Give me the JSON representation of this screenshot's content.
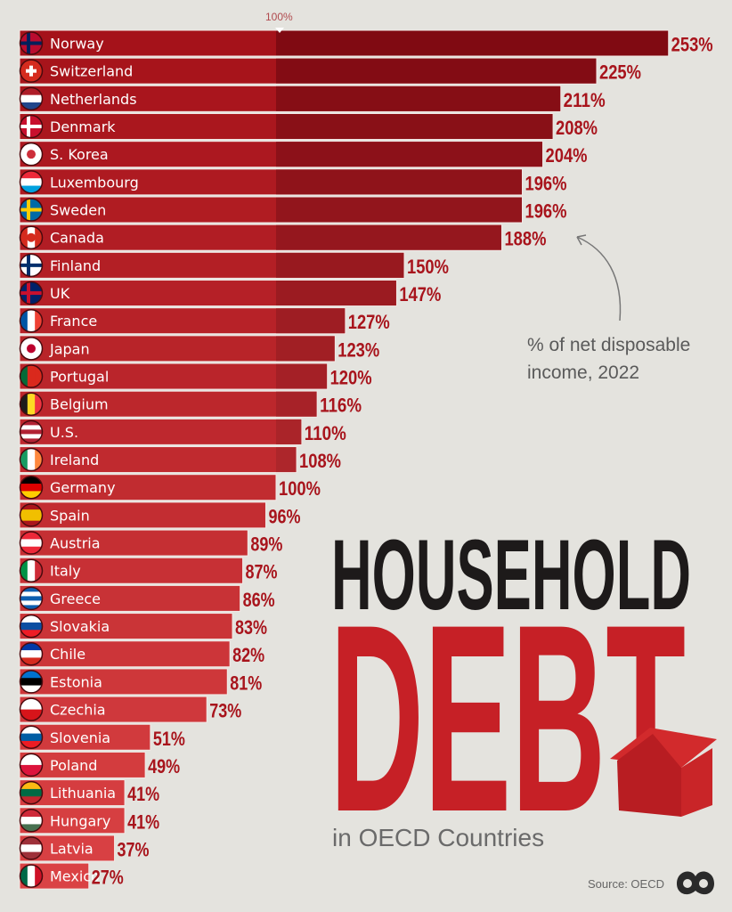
{
  "chart_data": {
    "type": "bar",
    "orientation": "horizontal",
    "title": "HOUSEHOLD DEBT",
    "subtitle": "in OECD Countries",
    "annotation": "% of net disposable income, 2022",
    "reference_line": {
      "value": 100,
      "label": "100%"
    },
    "source": "Source: OECD",
    "value_suffix": "%",
    "xlim": [
      0,
      260
    ],
    "categories": [
      "Norway",
      "Switzerland",
      "Netherlands",
      "Denmark",
      "S. Korea",
      "Luxembourg",
      "Sweden",
      "Canada",
      "Finland",
      "UK",
      "France",
      "Japan",
      "Portugal",
      "Belgium",
      "U.S.",
      "Ireland",
      "Germany",
      "Spain",
      "Austria",
      "Italy",
      "Greece",
      "Slovakia",
      "Chile",
      "Estonia",
      "Czechia",
      "Slovenia",
      "Poland",
      "Lithuania",
      "Hungary",
      "Latvia",
      "Mexico"
    ],
    "values": [
      253,
      225,
      211,
      208,
      204,
      196,
      196,
      188,
      150,
      147,
      127,
      123,
      120,
      116,
      110,
      108,
      100,
      96,
      89,
      87,
      86,
      83,
      82,
      81,
      73,
      51,
      49,
      41,
      41,
      37,
      27
    ],
    "colors": {
      "bar_dark": "#8f0d15",
      "bar_light": "#d9383c",
      "label": "#a8141c",
      "title_black": "#1d1a1a",
      "title_red": "#c62026",
      "background": "#e4e3de"
    }
  },
  "flags": {
    "Norway": {
      "dir": "h",
      "c": [
        "#ba0c2f",
        "#ba0c2f"
      ],
      "cross": "#00205b"
    },
    "Switzerland": {
      "dir": "h",
      "c": [
        "#d52b1e"
      ],
      "cross": "#ffffff",
      "plus": true
    },
    "Netherlands": {
      "dir": "h",
      "c": [
        "#ae1c28",
        "#ffffff",
        "#21468b"
      ]
    },
    "Denmark": {
      "dir": "h",
      "c": [
        "#c8102e"
      ],
      "cross": "#ffffff"
    },
    "S. Korea": {
      "dir": "h",
      "c": [
        "#ffffff"
      ],
      "dot": "#cd2e3a"
    },
    "Luxembourg": {
      "dir": "h",
      "c": [
        "#ed2939",
        "#ffffff",
        "#00a1de"
      ]
    },
    "Sweden": {
      "dir": "h",
      "c": [
        "#006aa7"
      ],
      "cross": "#fecc00"
    },
    "Canada": {
      "dir": "v",
      "c": [
        "#d52b1e",
        "#ffffff",
        "#d52b1e"
      ],
      "dot": "#d52b1e"
    },
    "Finland": {
      "dir": "h",
      "c": [
        "#ffffff"
      ],
      "cross": "#002f6c"
    },
    "UK": {
      "dir": "h",
      "c": [
        "#012169"
      ],
      "cross": "#c8102e"
    },
    "France": {
      "dir": "v",
      "c": [
        "#0055a4",
        "#ffffff",
        "#ef4135"
      ]
    },
    "Japan": {
      "dir": "h",
      "c": [
        "#ffffff"
      ],
      "dot": "#bc002d"
    },
    "Portugal": {
      "dir": "v",
      "c": [
        "#046a38",
        "#da291c",
        "#da291c"
      ]
    },
    "Belgium": {
      "dir": "v",
      "c": [
        "#1d1d1b",
        "#fdda24",
        "#ef3340"
      ]
    },
    "U.S.": {
      "dir": "h",
      "c": [
        "#b22234",
        "#ffffff",
        "#b22234",
        "#ffffff",
        "#b22234"
      ]
    },
    "Ireland": {
      "dir": "v",
      "c": [
        "#169b62",
        "#ffffff",
        "#ff883e"
      ]
    },
    "Germany": {
      "dir": "h",
      "c": [
        "#000000",
        "#dd0000",
        "#ffce00"
      ]
    },
    "Spain": {
      "dir": "h",
      "c": [
        "#aa151b",
        "#f1bf00",
        "#f1bf00",
        "#aa151b"
      ]
    },
    "Austria": {
      "dir": "h",
      "c": [
        "#ed2939",
        "#ffffff",
        "#ed2939"
      ]
    },
    "Italy": {
      "dir": "v",
      "c": [
        "#009246",
        "#ffffff",
        "#ce2b37"
      ]
    },
    "Greece": {
      "dir": "h",
      "c": [
        "#0d5eaf",
        "#ffffff",
        "#0d5eaf",
        "#ffffff",
        "#0d5eaf"
      ]
    },
    "Slovakia": {
      "dir": "h",
      "c": [
        "#ffffff",
        "#0b4ea2",
        "#ee1c25"
      ]
    },
    "Chile": {
      "dir": "h",
      "c": [
        "#0039a6",
        "#ffffff",
        "#d52b1e"
      ]
    },
    "Estonia": {
      "dir": "h",
      "c": [
        "#0072ce",
        "#000000",
        "#ffffff"
      ]
    },
    "Czechia": {
      "dir": "h",
      "c": [
        "#ffffff",
        "#d7141a"
      ]
    },
    "Slovenia": {
      "dir": "h",
      "c": [
        "#ffffff",
        "#005da4",
        "#ed1c24"
      ]
    },
    "Poland": {
      "dir": "h",
      "c": [
        "#ffffff",
        "#dc143c"
      ]
    },
    "Lithuania": {
      "dir": "h",
      "c": [
        "#fdb913",
        "#006a44",
        "#c1272d"
      ]
    },
    "Hungary": {
      "dir": "h",
      "c": [
        "#ce2939",
        "#ffffff",
        "#477050"
      ]
    },
    "Latvia": {
      "dir": "h",
      "c": [
        "#9e3039",
        "#ffffff",
        "#9e3039"
      ]
    },
    "Mexico": {
      "dir": "v",
      "c": [
        "#006847",
        "#ffffff",
        "#ce1126"
      ]
    }
  },
  "header": {
    "reference_label": "100%"
  },
  "titles": {
    "line1": "HOUSEHOLD",
    "line2": "DEBT",
    "subtitle": "in OECD Countries"
  },
  "annotation": {
    "line1": "% of net disposable",
    "line2": "income, 2022"
  },
  "footer": {
    "source": "Source: OECD"
  }
}
